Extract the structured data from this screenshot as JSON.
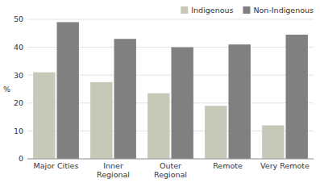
{
  "chart_data": {
    "type": "bar",
    "categories": [
      "Major Cities",
      "Inner\nRegional",
      "Outer\nRegional",
      "Remote",
      "Very Remote"
    ],
    "series": [
      {
        "name": "Indigenous",
        "color": "#c8c8b8",
        "values": [
          31.0,
          27.5,
          23.5,
          19.0,
          12.0
        ]
      },
      {
        "name": "Non-Indigenous",
        "color": "#808080",
        "values": [
          49.0,
          43.0,
          40.0,
          41.0,
          44.5
        ]
      }
    ],
    "ylabel": "%",
    "ylim": [
      0,
      50
    ],
    "yticks": [
      0,
      10,
      20,
      30,
      40,
      50
    ],
    "grid": true,
    "legend": "upper right"
  }
}
